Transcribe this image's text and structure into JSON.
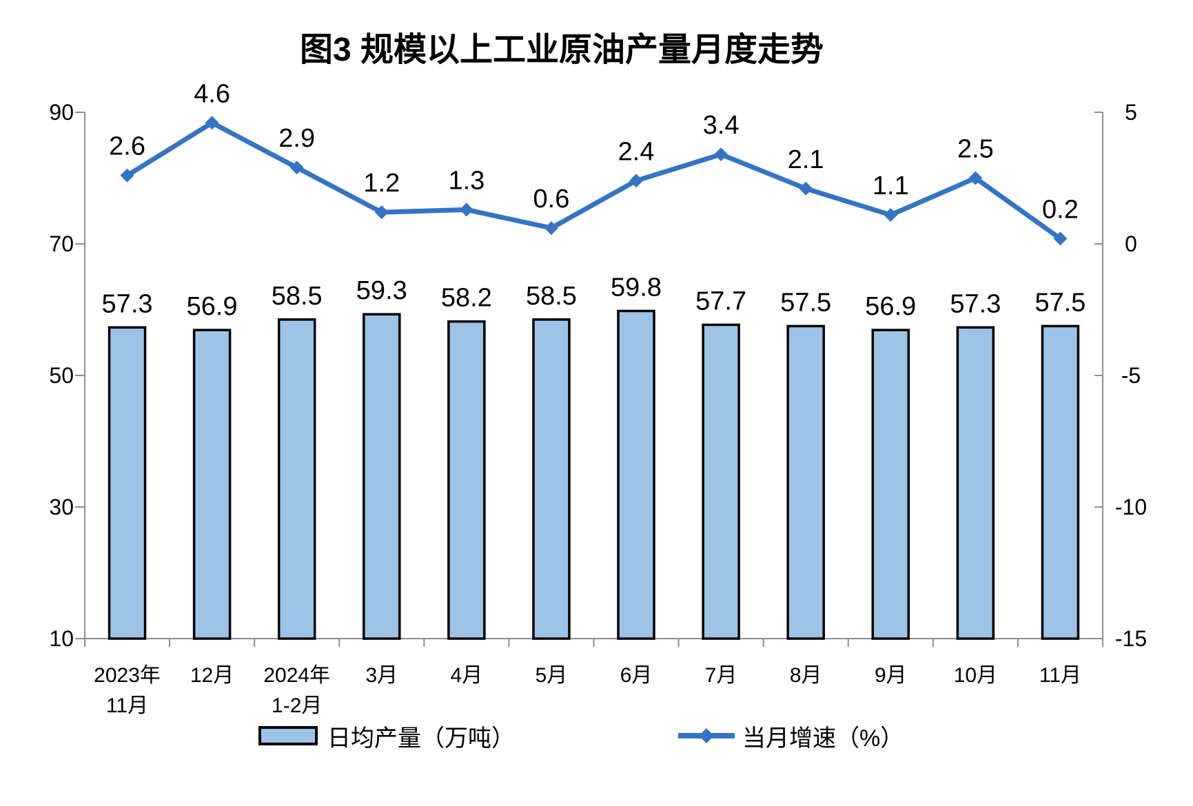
{
  "title": "图3 规模以上工业原油产量月度走势",
  "legend": {
    "bar": {
      "label": "日均产量（万吨）"
    },
    "line": {
      "label": "当月增速（%）"
    }
  },
  "colors": {
    "bar_fill": "#9DC3E6",
    "bar_border": "#000000",
    "line": "#3474C4",
    "axis": "#8C8C8C",
    "label_text": "#000000"
  },
  "chart_data": {
    "type": "bar+line combo",
    "title": "图3 规模以上工业原油产量月度走势",
    "grid": false,
    "legend_position": "bottom",
    "categories": [
      [
        "2023年",
        "11月"
      ],
      [
        "12月"
      ],
      [
        "2024年",
        "1-2月"
      ],
      [
        "3月"
      ],
      [
        "4月"
      ],
      [
        "5月"
      ],
      [
        "6月"
      ],
      [
        "7月"
      ],
      [
        "8月"
      ],
      [
        "9月"
      ],
      [
        "10月"
      ],
      [
        "11月"
      ]
    ],
    "series": [
      {
        "name": "日均产量（万吨）",
        "type": "bar",
        "axis": "left",
        "values": [
          57.3,
          56.9,
          58.5,
          59.3,
          58.2,
          58.5,
          59.8,
          57.7,
          57.5,
          56.9,
          57.3,
          57.5
        ]
      },
      {
        "name": "当月增速（%）",
        "type": "line",
        "axis": "right",
        "values": [
          2.6,
          4.6,
          2.9,
          1.2,
          1.3,
          0.6,
          2.4,
          3.4,
          2.1,
          1.1,
          2.5,
          0.2
        ]
      }
    ],
    "left_axis": {
      "min": 10,
      "max": 90,
      "ticks": [
        10,
        30,
        50,
        70,
        90
      ]
    },
    "right_axis": {
      "min": -15,
      "max": 5,
      "ticks": [
        -15,
        -10,
        -5,
        0,
        5
      ]
    }
  }
}
